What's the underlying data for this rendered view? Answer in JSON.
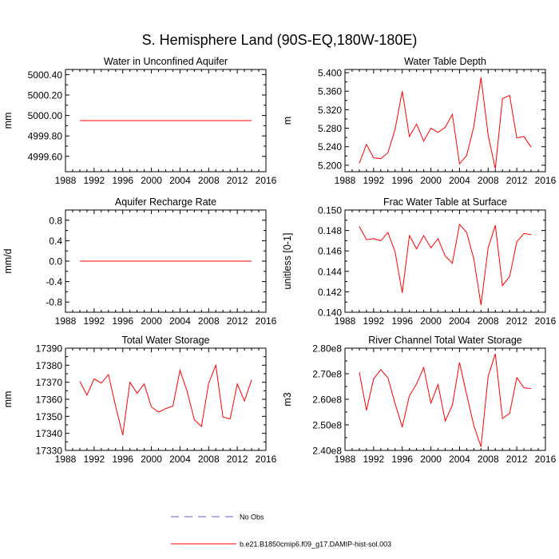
{
  "figure": {
    "title": "S. Hemisphere Land (90S-EQ,180W-180E)"
  },
  "legend": {
    "items": [
      {
        "label": "No Obs",
        "color": "#6060c0",
        "style": "dashed"
      },
      {
        "label": "b.e21.B1850cmip6.f09_g17.DAMIP-hist-sol.003",
        "color": "#ff0000",
        "style": "solid"
      }
    ]
  },
  "colors": {
    "series": "#ff0000",
    "axis": "#000000"
  },
  "chart_data": [
    {
      "type": "line",
      "title": "Water in Unconfined Aquifer",
      "xlabel": "",
      "ylabel": "mm",
      "xlim": [
        1988,
        2016
      ],
      "ylim": [
        4999.45,
        5000.45
      ],
      "xticks": [
        1988,
        1992,
        1996,
        2000,
        2004,
        2008,
        2012,
        2016
      ],
      "xtick_labels": [
        "1988",
        "1992",
        "1996",
        "2000",
        "2004",
        "2008",
        "2012",
        "2016"
      ],
      "yticks": [
        4999.6,
        4999.8,
        5000.0,
        5000.2,
        5000.4
      ],
      "ytick_labels": [
        "4999.60",
        "4999.80",
        "5000.00",
        "5000.20",
        "5000.40"
      ],
      "x": [
        1990,
        2014
      ],
      "series": [
        {
          "values": [
            4999.95,
            4999.95
          ]
        }
      ]
    },
    {
      "type": "line",
      "title": "Water Table Depth",
      "xlabel": "",
      "ylabel": "m",
      "xlim": [
        1988,
        2016
      ],
      "ylim": [
        5.186,
        5.407
      ],
      "xticks": [
        1988,
        1992,
        1996,
        2000,
        2004,
        2008,
        2012,
        2016
      ],
      "xtick_labels": [
        "1988",
        "1992",
        "1996",
        "2000",
        "2004",
        "2008",
        "2012",
        "2016"
      ],
      "yticks": [
        5.2,
        5.24,
        5.28,
        5.32,
        5.36,
        5.4
      ],
      "ytick_labels": [
        "5.200",
        "5.240",
        "5.280",
        "5.320",
        "5.360",
        "5.400"
      ],
      "x": [
        1990,
        1991,
        1992,
        1993,
        1994,
        1995,
        1996,
        1997,
        1998,
        1999,
        2000,
        2001,
        2002,
        2003,
        2004,
        2005,
        2006,
        2007,
        2008,
        2009,
        2010,
        2011,
        2012,
        2013,
        2014
      ],
      "series": [
        {
          "values": [
            5.204,
            5.245,
            5.216,
            5.214,
            5.227,
            5.278,
            5.36,
            5.262,
            5.289,
            5.252,
            5.28,
            5.271,
            5.282,
            5.31,
            5.203,
            5.221,
            5.284,
            5.39,
            5.265,
            5.192,
            5.344,
            5.351,
            5.259,
            5.262,
            5.239
          ]
        }
      ]
    },
    {
      "type": "line",
      "title": "Aquifer Recharge Rate",
      "xlabel": "",
      "ylabel": "mm/d",
      "xlim": [
        1988,
        2016
      ],
      "ylim": [
        -1.0,
        1.0
      ],
      "xticks": [
        1988,
        1992,
        1996,
        2000,
        2004,
        2008,
        2012,
        2016
      ],
      "xtick_labels": [
        "1988",
        "1992",
        "1996",
        "2000",
        "2004",
        "2008",
        "2012",
        "2016"
      ],
      "yticks": [
        -0.8,
        -0.4,
        0.0,
        0.4,
        0.8
      ],
      "ytick_labels": [
        "-0.8",
        "-0.4",
        "0.0",
        "0.4",
        "0.8"
      ],
      "x": [
        1990,
        2014
      ],
      "series": [
        {
          "values": [
            0.0,
            0.0
          ]
        }
      ]
    },
    {
      "type": "line",
      "title": "Frac Water Table at Surface",
      "xlabel": "",
      "ylabel": "unitless [0-1]",
      "xlim": [
        1988,
        2016
      ],
      "ylim": [
        0.14,
        0.15
      ],
      "xticks": [
        1988,
        1992,
        1996,
        2000,
        2004,
        2008,
        2012,
        2016
      ],
      "xtick_labels": [
        "1988",
        "1992",
        "1996",
        "2000",
        "2004",
        "2008",
        "2012",
        "2016"
      ],
      "yticks": [
        0.14,
        0.142,
        0.144,
        0.146,
        0.148,
        0.15
      ],
      "ytick_labels": [
        "0.140",
        "0.142",
        "0.144",
        "0.146",
        "0.148",
        "0.150"
      ],
      "x": [
        1990,
        1991,
        1992,
        1993,
        1994,
        1995,
        1996,
        1997,
        1998,
        1999,
        2000,
        2001,
        2002,
        2003,
        2004,
        2005,
        2006,
        2007,
        2008,
        2009,
        2010,
        2011,
        2012,
        2013,
        2014
      ],
      "series": [
        {
          "values": [
            0.1484,
            0.1471,
            0.1472,
            0.147,
            0.1478,
            0.1459,
            0.1419,
            0.1475,
            0.1462,
            0.1475,
            0.1463,
            0.1472,
            0.1455,
            0.1448,
            0.1486,
            0.1478,
            0.1452,
            0.1407,
            0.1463,
            0.1485,
            0.1426,
            0.1435,
            0.1469,
            0.1477,
            0.1476
          ]
        }
      ]
    },
    {
      "type": "line",
      "title": "Total Water Storage",
      "xlabel": "",
      "ylabel": "mm",
      "xlim": [
        1988,
        2016
      ],
      "ylim": [
        17330,
        17390
      ],
      "xticks": [
        1988,
        1992,
        1996,
        2000,
        2004,
        2008,
        2012,
        2016
      ],
      "xtick_labels": [
        "1988",
        "1992",
        "1996",
        "2000",
        "2004",
        "2008",
        "2012",
        "2016"
      ],
      "yticks": [
        17330,
        17340,
        17350,
        17360,
        17370,
        17380,
        17390
      ],
      "ytick_labels": [
        "17330",
        "17340",
        "17350",
        "17360",
        "17370",
        "17380",
        "17390"
      ],
      "x": [
        1990,
        1991,
        1992,
        1993,
        1994,
        1995,
        1996,
        1997,
        1998,
        1999,
        2000,
        2001,
        2002,
        2003,
        2004,
        2005,
        2006,
        2007,
        2008,
        2009,
        2010,
        2011,
        2012,
        2013,
        2014
      ],
      "series": [
        {
          "values": [
            17370.5,
            17362.5,
            17372,
            17369.5,
            17374.5,
            17356,
            17339,
            17370,
            17363.5,
            17369,
            17355.5,
            17352.5,
            17354.5,
            17356,
            17377,
            17364.5,
            17348,
            17344,
            17369.5,
            17380,
            17349.5,
            17348.5,
            17369,
            17359,
            17371.5
          ]
        }
      ]
    },
    {
      "type": "line",
      "title": "River Channel Total Water Storage",
      "xlabel": "",
      "ylabel": "m3",
      "xlim": [
        1988,
        2016
      ],
      "ylim": [
        240000000.0,
        280000000.0
      ],
      "xticks": [
        1988,
        1992,
        1996,
        2000,
        2004,
        2008,
        2012,
        2016
      ],
      "xtick_labels": [
        "1988",
        "1992",
        "1996",
        "2000",
        "2004",
        "2008",
        "2012",
        "2016"
      ],
      "yticks": [
        240000000.0,
        250000000.0,
        260000000.0,
        270000000.0,
        280000000.0
      ],
      "ytick_labels": [
        "2.40e8",
        "2.50e8",
        "2.60e8",
        "2.70e8",
        "2.80e8"
      ],
      "x": [
        1990,
        1991,
        1992,
        1993,
        1994,
        1995,
        1996,
        1997,
        1998,
        1999,
        2000,
        2001,
        2002,
        2003,
        2004,
        2005,
        2006,
        2007,
        2008,
        2009,
        2010,
        2011,
        2012,
        2013,
        2014
      ],
      "series": [
        {
          "values": [
            270600000.0,
            255700000.0,
            268000000.0,
            271600000.0,
            268400000.0,
            258300000.0,
            249200000.0,
            261400000.0,
            266000000.0,
            272400000.0,
            258500000.0,
            265800000.0,
            251500000.0,
            257700000.0,
            274400000.0,
            261800000.0,
            249700000.0,
            241400000.0,
            269000000.0,
            277800000.0,
            252500000.0,
            254500000.0,
            268500000.0,
            264500000.0,
            264200000.0
          ]
        }
      ]
    }
  ]
}
